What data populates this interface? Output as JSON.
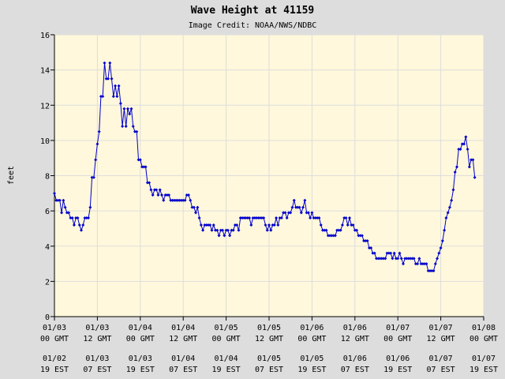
{
  "colors": {
    "page_background": "#dddddd",
    "plot_background": "#fff8dc",
    "grid": "#dddddd",
    "series": "#0000cc",
    "axis": "#000000"
  },
  "chart_data": {
    "type": "line",
    "title": "Wave Height at 41159",
    "subtitle": "Image Credit: NOAA/NWS/NDBC",
    "xlabel": "",
    "ylabel": "feet",
    "ylim": [
      0,
      16
    ],
    "yticks": [
      0,
      2,
      4,
      6,
      8,
      10,
      12,
      14,
      16
    ],
    "xlim_hours": [
      0,
      120
    ],
    "x_unit": "hours since 01/03 00 GMT",
    "grid": true,
    "x_ticks": [
      {
        "hour": 0,
        "gmt_date": "01/03",
        "gmt_time": "00 GMT",
        "est_date": "01/02",
        "est_time": "19 EST"
      },
      {
        "hour": 12,
        "gmt_date": "01/03",
        "gmt_time": "12 GMT",
        "est_date": "01/03",
        "est_time": "07 EST"
      },
      {
        "hour": 24,
        "gmt_date": "01/04",
        "gmt_time": "00 GMT",
        "est_date": "01/03",
        "est_time": "19 EST"
      },
      {
        "hour": 36,
        "gmt_date": "01/04",
        "gmt_time": "12 GMT",
        "est_date": "01/04",
        "est_time": "07 EST"
      },
      {
        "hour": 48,
        "gmt_date": "01/05",
        "gmt_time": "00 GMT",
        "est_date": "01/04",
        "est_time": "19 EST"
      },
      {
        "hour": 60,
        "gmt_date": "01/05",
        "gmt_time": "12 GMT",
        "est_date": "01/05",
        "est_time": "07 EST"
      },
      {
        "hour": 72,
        "gmt_date": "01/06",
        "gmt_time": "00 GMT",
        "est_date": "01/05",
        "est_time": "19 EST"
      },
      {
        "hour": 84,
        "gmt_date": "01/06",
        "gmt_time": "12 GMT",
        "est_date": "01/06",
        "est_time": "07 EST"
      },
      {
        "hour": 96,
        "gmt_date": "01/07",
        "gmt_time": "00 GMT",
        "est_date": "01/06",
        "est_time": "19 EST"
      },
      {
        "hour": 108,
        "gmt_date": "01/07",
        "gmt_time": "12 GMT",
        "est_date": "01/07",
        "est_time": "07 EST"
      },
      {
        "hour": 120,
        "gmt_date": "01/08",
        "gmt_time": "00 GMT",
        "est_date": "01/07",
        "est_time": "19 EST"
      }
    ],
    "series": [
      {
        "points": [
          [
            0,
            7.0
          ],
          [
            0.5,
            6.6
          ],
          [
            1,
            6.6
          ],
          [
            1.5,
            6.6
          ],
          [
            2,
            5.9
          ],
          [
            2.5,
            6.6
          ],
          [
            3,
            6.2
          ],
          [
            3.5,
            5.9
          ],
          [
            4,
            5.9
          ],
          [
            4.5,
            5.6
          ],
          [
            5,
            5.6
          ],
          [
            5.5,
            5.2
          ],
          [
            6,
            5.6
          ],
          [
            6.5,
            5.6
          ],
          [
            7,
            5.2
          ],
          [
            7.5,
            4.9
          ],
          [
            8,
            5.2
          ],
          [
            8.5,
            5.6
          ],
          [
            9,
            5.6
          ],
          [
            9.5,
            5.6
          ],
          [
            10,
            6.2
          ],
          [
            10.5,
            7.9
          ],
          [
            11,
            7.9
          ],
          [
            11.5,
            8.9
          ],
          [
            12,
            9.8
          ],
          [
            12.5,
            10.5
          ],
          [
            13,
            12.5
          ],
          [
            13.5,
            12.5
          ],
          [
            14,
            14.4
          ],
          [
            14.5,
            13.5
          ],
          [
            15,
            13.5
          ],
          [
            15.5,
            14.4
          ],
          [
            16,
            13.5
          ],
          [
            16.5,
            12.5
          ],
          [
            17,
            13.1
          ],
          [
            17.5,
            12.5
          ],
          [
            18,
            13.1
          ],
          [
            18.5,
            12.1
          ],
          [
            19,
            10.8
          ],
          [
            19.5,
            11.8
          ],
          [
            20,
            10.8
          ],
          [
            20.5,
            11.8
          ],
          [
            21,
            11.5
          ],
          [
            21.5,
            11.8
          ],
          [
            22,
            10.8
          ],
          [
            22.5,
            10.5
          ],
          [
            23,
            10.5
          ],
          [
            23.5,
            8.9
          ],
          [
            24,
            8.9
          ],
          [
            24.5,
            8.5
          ],
          [
            25,
            8.5
          ],
          [
            25.5,
            8.5
          ],
          [
            26,
            7.6
          ],
          [
            26.5,
            7.6
          ],
          [
            27,
            7.2
          ],
          [
            27.5,
            6.9
          ],
          [
            28,
            7.2
          ],
          [
            28.5,
            7.2
          ],
          [
            29,
            6.9
          ],
          [
            29.5,
            7.2
          ],
          [
            30,
            6.9
          ],
          [
            30.5,
            6.6
          ],
          [
            31,
            6.9
          ],
          [
            31.5,
            6.9
          ],
          [
            32,
            6.9
          ],
          [
            32.5,
            6.6
          ],
          [
            33,
            6.6
          ],
          [
            33.5,
            6.6
          ],
          [
            34,
            6.6
          ],
          [
            34.5,
            6.6
          ],
          [
            35,
            6.6
          ],
          [
            35.5,
            6.6
          ],
          [
            36,
            6.6
          ],
          [
            36.5,
            6.6
          ],
          [
            37,
            6.9
          ],
          [
            37.5,
            6.9
          ],
          [
            38,
            6.6
          ],
          [
            38.5,
            6.2
          ],
          [
            39,
            6.2
          ],
          [
            39.5,
            5.9
          ],
          [
            40,
            6.2
          ],
          [
            40.5,
            5.6
          ],
          [
            41,
            5.2
          ],
          [
            41.5,
            4.9
          ],
          [
            42,
            5.2
          ],
          [
            42.5,
            5.2
          ],
          [
            43,
            5.2
          ],
          [
            43.5,
            5.2
          ],
          [
            44,
            4.9
          ],
          [
            44.5,
            5.2
          ],
          [
            45,
            4.9
          ],
          [
            45.5,
            4.9
          ],
          [
            46,
            4.6
          ],
          [
            46.5,
            4.9
          ],
          [
            47,
            4.9
          ],
          [
            47.5,
            4.6
          ],
          [
            48,
            4.9
          ],
          [
            48.5,
            4.9
          ],
          [
            49,
            4.6
          ],
          [
            49.5,
            4.9
          ],
          [
            50,
            4.9
          ],
          [
            50.5,
            5.2
          ],
          [
            51,
            5.2
          ],
          [
            51.5,
            4.9
          ],
          [
            52,
            5.6
          ],
          [
            52.5,
            5.6
          ],
          [
            53,
            5.6
          ],
          [
            53.5,
            5.6
          ],
          [
            54,
            5.6
          ],
          [
            54.5,
            5.6
          ],
          [
            55,
            5.2
          ],
          [
            55.5,
            5.6
          ],
          [
            56,
            5.6
          ],
          [
            56.5,
            5.6
          ],
          [
            57,
            5.6
          ],
          [
            57.5,
            5.6
          ],
          [
            58,
            5.6
          ],
          [
            58.5,
            5.6
          ],
          [
            59,
            5.2
          ],
          [
            59.5,
            4.9
          ],
          [
            60,
            5.2
          ],
          [
            60.5,
            4.9
          ],
          [
            61,
            5.2
          ],
          [
            61.5,
            5.2
          ],
          [
            62,
            5.6
          ],
          [
            62.5,
            5.2
          ],
          [
            63,
            5.6
          ],
          [
            63.5,
            5.6
          ],
          [
            64,
            5.9
          ],
          [
            64.5,
            5.9
          ],
          [
            65,
            5.6
          ],
          [
            65.5,
            5.9
          ],
          [
            66,
            5.9
          ],
          [
            66.5,
            6.2
          ],
          [
            67,
            6.6
          ],
          [
            67.5,
            6.2
          ],
          [
            68,
            6.2
          ],
          [
            68.5,
            6.2
          ],
          [
            69,
            5.9
          ],
          [
            69.5,
            6.2
          ],
          [
            70,
            6.6
          ],
          [
            70.5,
            5.9
          ],
          [
            71,
            5.9
          ],
          [
            71.5,
            5.6
          ],
          [
            72,
            5.9
          ],
          [
            72.5,
            5.6
          ],
          [
            73,
            5.6
          ],
          [
            73.5,
            5.6
          ],
          [
            74,
            5.6
          ],
          [
            74.5,
            5.2
          ],
          [
            75,
            4.9
          ],
          [
            75.5,
            4.9
          ],
          [
            76,
            4.9
          ],
          [
            76.5,
            4.6
          ],
          [
            77,
            4.6
          ],
          [
            77.5,
            4.6
          ],
          [
            78,
            4.6
          ],
          [
            78.5,
            4.6
          ],
          [
            79,
            4.9
          ],
          [
            79.5,
            4.9
          ],
          [
            80,
            4.9
          ],
          [
            80.5,
            5.2
          ],
          [
            81,
            5.6
          ],
          [
            81.5,
            5.6
          ],
          [
            82,
            5.2
          ],
          [
            82.5,
            5.6
          ],
          [
            83,
            5.2
          ],
          [
            83.5,
            5.2
          ],
          [
            84,
            4.9
          ],
          [
            84.5,
            4.9
          ],
          [
            85,
            4.6
          ],
          [
            85.5,
            4.6
          ],
          [
            86,
            4.6
          ],
          [
            86.5,
            4.3
          ],
          [
            87,
            4.3
          ],
          [
            87.5,
            4.3
          ],
          [
            88,
            3.9
          ],
          [
            88.5,
            3.9
          ],
          [
            89,
            3.6
          ],
          [
            89.5,
            3.6
          ],
          [
            90,
            3.3
          ],
          [
            90.5,
            3.3
          ],
          [
            91,
            3.3
          ],
          [
            91.5,
            3.3
          ],
          [
            92,
            3.3
          ],
          [
            92.5,
            3.3
          ],
          [
            93,
            3.6
          ],
          [
            93.5,
            3.6
          ],
          [
            94,
            3.6
          ],
          [
            94.5,
            3.3
          ],
          [
            95,
            3.6
          ],
          [
            95.5,
            3.3
          ],
          [
            96,
            3.3
          ],
          [
            96.5,
            3.6
          ],
          [
            97,
            3.3
          ],
          [
            97.5,
            3.0
          ],
          [
            98,
            3.3
          ],
          [
            98.5,
            3.3
          ],
          [
            99,
            3.3
          ],
          [
            99.5,
            3.3
          ],
          [
            100,
            3.3
          ],
          [
            100.5,
            3.3
          ],
          [
            101,
            3.0
          ],
          [
            101.5,
            3.0
          ],
          [
            102,
            3.3
          ],
          [
            102.5,
            3.0
          ],
          [
            103,
            3.0
          ],
          [
            103.5,
            3.0
          ],
          [
            104,
            3.0
          ],
          [
            104.5,
            2.6
          ],
          [
            105,
            2.6
          ],
          [
            105.5,
            2.6
          ],
          [
            106,
            2.6
          ],
          [
            106.5,
            3.0
          ],
          [
            107,
            3.3
          ],
          [
            107.5,
            3.6
          ],
          [
            108,
            3.9
          ],
          [
            108.5,
            4.3
          ],
          [
            109,
            4.9
          ],
          [
            109.5,
            5.6
          ],
          [
            110,
            5.9
          ],
          [
            110.5,
            6.2
          ],
          [
            111,
            6.6
          ],
          [
            111.5,
            7.2
          ],
          [
            112,
            8.2
          ],
          [
            112.5,
            8.5
          ],
          [
            113,
            9.5
          ],
          [
            113.5,
            9.5
          ],
          [
            114,
            9.8
          ],
          [
            114.5,
            9.8
          ],
          [
            115,
            10.2
          ],
          [
            115.5,
            9.5
          ],
          [
            116,
            8.5
          ],
          [
            116.5,
            8.9
          ],
          [
            117,
            8.9
          ],
          [
            117.5,
            7.9
          ]
        ]
      }
    ]
  }
}
